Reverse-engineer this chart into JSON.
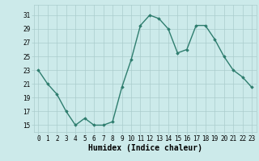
{
  "x": [
    0,
    1,
    2,
    3,
    4,
    5,
    6,
    7,
    8,
    9,
    10,
    11,
    12,
    13,
    14,
    15,
    16,
    17,
    18,
    19,
    20,
    21,
    22,
    23
  ],
  "y": [
    23,
    21,
    19.5,
    17,
    15,
    16,
    15,
    15,
    15.5,
    20.5,
    24.5,
    29.5,
    31,
    30.5,
    29,
    25.5,
    26,
    29.5,
    29.5,
    27.5,
    25,
    23,
    22,
    20.5
  ],
  "line_color": "#2e7d6e",
  "marker": "D",
  "marker_size": 1.8,
  "bg_color": "#cceaea",
  "grid_color": "#aacccc",
  "xlabel": "Humidex (Indice chaleur)",
  "xlabel_fontsize": 7,
  "yticks": [
    15,
    17,
    19,
    21,
    23,
    25,
    27,
    29,
    31
  ],
  "xticks": [
    0,
    1,
    2,
    3,
    4,
    5,
    6,
    7,
    8,
    9,
    10,
    11,
    12,
    13,
    14,
    15,
    16,
    17,
    18,
    19,
    20,
    21,
    22,
    23
  ],
  "ylim": [
    14.0,
    32.5
  ],
  "xlim": [
    -0.5,
    23.5
  ],
  "tick_fontsize": 5.5,
  "linewidth": 1.0
}
